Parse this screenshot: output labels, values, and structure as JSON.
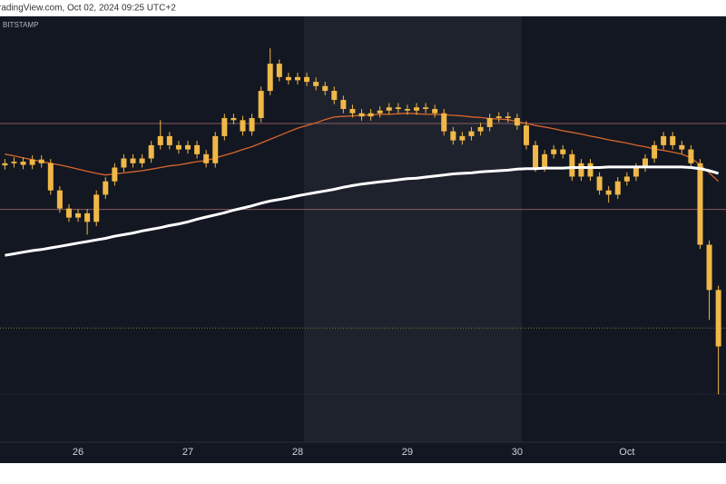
{
  "chart_data": {
    "type": "candlestick",
    "header": "radingView.com, Oct 02, 2024 09:25 UTC+2",
    "symbol": "BITSTAMP",
    "color": "#f0b847",
    "categories": [
      null,
      null,
      null,
      null,
      null,
      null,
      null,
      null,
      "26",
      null,
      null,
      null,
      null,
      null,
      null,
      null,
      null,
      null,
      null,
      null,
      "27",
      null,
      null,
      null,
      null,
      null,
      null,
      null,
      null,
      null,
      null,
      null,
      "28",
      null,
      null,
      null,
      null,
      null,
      null,
      null,
      null,
      null,
      null,
      null,
      "29",
      null,
      null,
      null,
      null,
      null,
      null,
      null,
      null,
      null,
      null,
      null,
      "30",
      null,
      null,
      null,
      null,
      null,
      null,
      null,
      null,
      null,
      null,
      null,
      "Oct",
      null,
      null,
      null,
      null,
      null,
      null,
      null,
      null,
      null,
      null
    ],
    "open": [
      64400,
      64440,
      64470,
      64410,
      64510,
      64440,
      63930,
      63590,
      63420,
      63500,
      63340,
      63850,
      64100,
      64360,
      64530,
      64440,
      64530,
      64780,
      64950,
      64780,
      64700,
      64780,
      64610,
      64440,
      64950,
      65290,
      65250,
      65040,
      65290,
      65800,
      66310,
      66060,
      66000,
      66060,
      65970,
      65890,
      65800,
      65630,
      65460,
      65380,
      65320,
      65380,
      65430,
      65490,
      65460,
      65430,
      65490,
      65460,
      65380,
      65040,
      64870,
      64950,
      65040,
      65120,
      65290,
      65320,
      65290,
      65150,
      64780,
      64360,
      64610,
      64700,
      64610,
      64190,
      64440,
      64190,
      63930,
      63850,
      64100,
      64190,
      64360,
      64530,
      64780,
      64950,
      64780,
      64700,
      64440,
      62910,
      62060
    ],
    "high": [
      64520,
      64550,
      64550,
      64590,
      64590,
      64520,
      64010,
      63670,
      63580,
      63580,
      63930,
      64180,
      64440,
      64610,
      64610,
      64610,
      64860,
      65250,
      65030,
      64860,
      64860,
      64860,
      64690,
      65030,
      65370,
      65370,
      65330,
      65370,
      65880,
      66600,
      66390,
      66140,
      66140,
      66140,
      66050,
      65970,
      65880,
      65710,
      65540,
      65460,
      65460,
      65510,
      65570,
      65570,
      65540,
      65570,
      65570,
      65540,
      65460,
      65120,
      65030,
      65120,
      65200,
      65370,
      65400,
      65400,
      65370,
      65230,
      64860,
      64690,
      64780,
      64780,
      64690,
      64520,
      64520,
      64270,
      64010,
      64180,
      64270,
      64440,
      64610,
      64860,
      65030,
      65030,
      64860,
      64780,
      64520,
      62990,
      62140
    ],
    "low": [
      64320,
      64360,
      64330,
      64330,
      64360,
      63850,
      63510,
      63340,
      63340,
      63100,
      63260,
      63770,
      64020,
      64280,
      64360,
      64360,
      64450,
      64700,
      64700,
      64620,
      64620,
      64530,
      64360,
      64360,
      64870,
      65170,
      64960,
      64960,
      65210,
      65720,
      65980,
      65920,
      65920,
      65890,
      65810,
      65720,
      65550,
      65380,
      65300,
      65240,
      65240,
      65300,
      65350,
      65380,
      65350,
      65350,
      65380,
      65300,
      64960,
      64790,
      64790,
      64870,
      64960,
      65040,
      65210,
      65210,
      65070,
      64700,
      64280,
      64280,
      64530,
      64530,
      64110,
      64110,
      64110,
      63850,
      63700,
      63770,
      64020,
      64110,
      64280,
      64450,
      64700,
      64700,
      64620,
      64360,
      62830,
      61500,
      60100
    ],
    "close": [
      64440,
      64470,
      64410,
      64510,
      64440,
      63930,
      63590,
      63420,
      63500,
      63340,
      63850,
      64100,
      64360,
      64530,
      64440,
      64530,
      64780,
      64950,
      64780,
      64700,
      64780,
      64610,
      64440,
      64950,
      65290,
      65250,
      65040,
      65290,
      65800,
      66310,
      66060,
      66000,
      66060,
      65970,
      65890,
      65800,
      65630,
      65460,
      65380,
      65320,
      65380,
      65430,
      65490,
      65460,
      65430,
      65490,
      65460,
      65380,
      65040,
      64870,
      64950,
      65040,
      65120,
      65290,
      65320,
      65290,
      65150,
      64780,
      64360,
      64610,
      64700,
      64610,
      64190,
      64440,
      64190,
      63930,
      63850,
      64100,
      64190,
      64360,
      64530,
      64780,
      64950,
      64780,
      64700,
      64440,
      62910,
      62060,
      61000
    ],
    "lines": [
      {
        "color": "#d9662a",
        "values": [
          64610,
          64580,
          64540,
          64510,
          64470,
          64440,
          64410,
          64370,
          64330,
          64290,
          64250,
          64220,
          64240,
          64260,
          64280,
          64300,
          64330,
          64360,
          64390,
          64410,
          64440,
          64470,
          64490,
          64540,
          64590,
          64640,
          64700,
          64750,
          64820,
          64890,
          64960,
          65030,
          65100,
          65150,
          65200,
          65260,
          65310,
          65320,
          65330,
          65340,
          65350,
          65360,
          65360,
          65370,
          65380,
          65370,
          65360,
          65360,
          65350,
          65340,
          65330,
          65310,
          65300,
          65280,
          65270,
          65260,
          65220,
          65190,
          65150,
          65120,
          65090,
          65050,
          65020,
          64990,
          64950,
          64920,
          64880,
          64850,
          64820,
          64780,
          64750,
          64710,
          64680,
          64650,
          64610,
          64540,
          64410,
          64260,
          64100
        ]
      },
      {
        "color": "#ffffff",
        "values": [
          62710,
          62740,
          62770,
          62800,
          62820,
          62850,
          62880,
          62910,
          62940,
          62970,
          63000,
          63030,
          63070,
          63100,
          63130,
          63170,
          63200,
          63230,
          63270,
          63300,
          63340,
          63390,
          63430,
          63470,
          63510,
          63560,
          63600,
          63640,
          63690,
          63730,
          63760,
          63790,
          63830,
          63860,
          63890,
          63920,
          63950,
          63990,
          64020,
          64050,
          64070,
          64090,
          64110,
          64130,
          64150,
          64160,
          64180,
          64200,
          64220,
          64240,
          64250,
          64260,
          64280,
          64290,
          64300,
          64310,
          64330,
          64340,
          64340,
          64350,
          64350,
          64350,
          64360,
          64360,
          64360,
          64360,
          64370,
          64370,
          64370,
          64370,
          64370,
          64370,
          64370,
          64370,
          64370,
          64360,
          64340,
          64300,
          64250
        ]
      }
    ],
    "levels": [
      {
        "value": 63573,
        "color": "#8a5a5a",
        "style": "solid"
      },
      {
        "value": 65188,
        "color": "#8a5a5a",
        "style": "solid"
      },
      {
        "value": 61346,
        "color": "#8a7a3a",
        "style": "dotted"
      },
      {
        "value": 60105,
        "color": "#3a3f4a",
        "style": "dotted"
      }
    ],
    "ylim": [
      59200,
      67200
    ]
  }
}
